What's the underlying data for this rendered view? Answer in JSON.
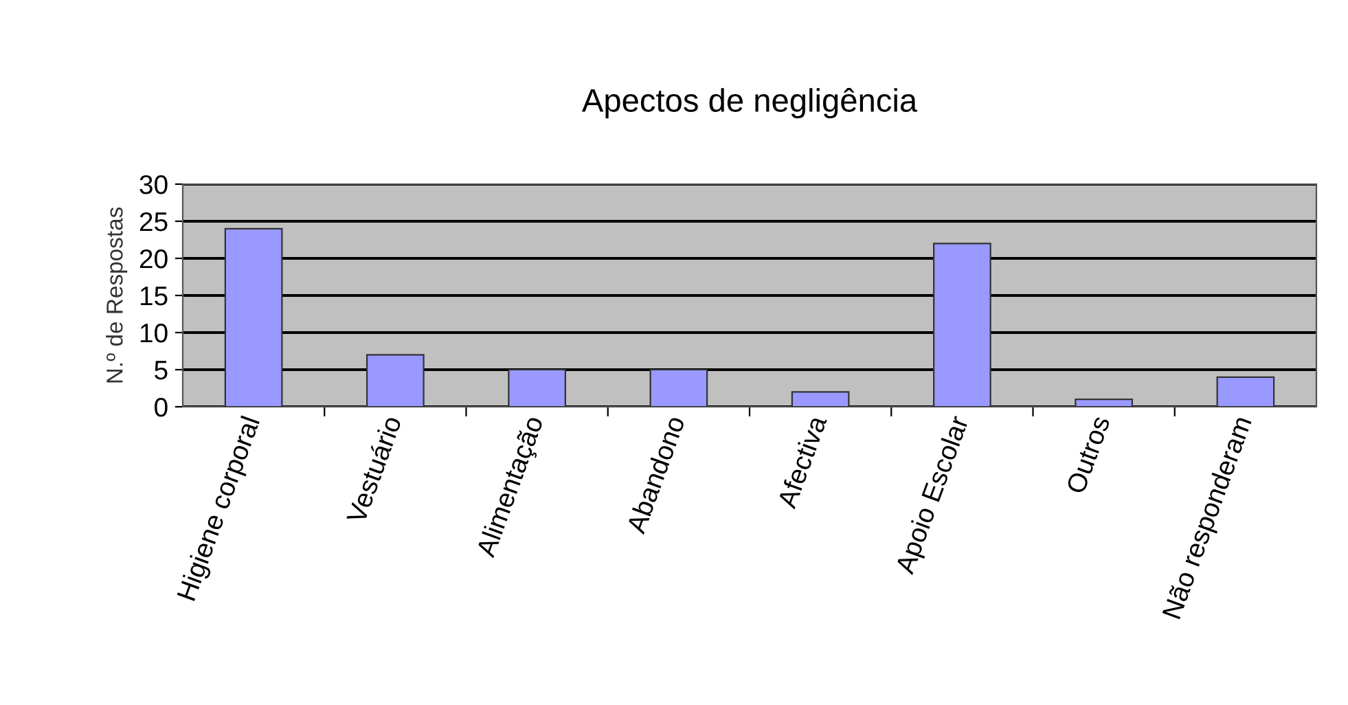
{
  "chart_data": {
    "type": "bar",
    "title": "Apectos de negligência",
    "ylabel": "N.º de Respostas",
    "categories": [
      "Higiene corporal",
      "Vestuário",
      "Alimentação",
      "Abandono",
      "Afectiva",
      "Apoio Escolar",
      "Outros",
      "Não responderam"
    ],
    "values": [
      24,
      7,
      5,
      5,
      2,
      22,
      1,
      4
    ],
    "color": "#9999ff",
    "ylim": [
      0,
      30
    ],
    "yticks": [
      0,
      5,
      10,
      15,
      20,
      25,
      30
    ],
    "grid": "y",
    "legend": false
  }
}
